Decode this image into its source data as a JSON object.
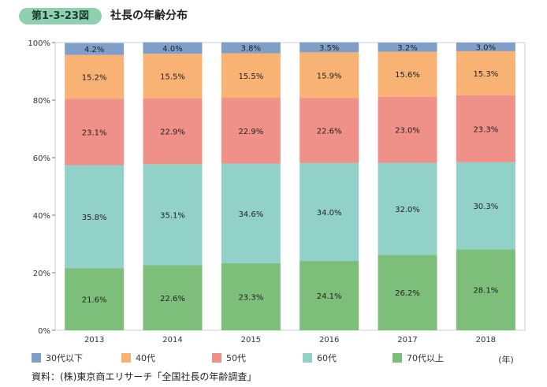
{
  "figure": {
    "label": "第1-3-23図",
    "title": "社長の年齢分布",
    "source": "資料：(株)東京商エリサーチ「全国社長の年齢調査」"
  },
  "chart_data": {
    "type": "bar",
    "stacked": true,
    "categories": [
      "2013",
      "2014",
      "2015",
      "2016",
      "2017",
      "2018"
    ],
    "x_unit": "(年)",
    "ylim": [
      0,
      100
    ],
    "y_ticks": [
      "0%",
      "20%",
      "40%",
      "60%",
      "80%",
      "100%"
    ],
    "legend_position": "bottom",
    "series": [
      {
        "name": "70代以上",
        "color": "#7dbe7a",
        "values": [
          21.6,
          22.6,
          23.3,
          24.1,
          26.2,
          28.1
        ],
        "labels": [
          "21.6%",
          "22.6%",
          "23.3%",
          "24.1%",
          "26.2%",
          "28.1%"
        ]
      },
      {
        "name": "60代",
        "color": "#92d1c8",
        "values": [
          35.8,
          35.1,
          34.6,
          34.0,
          32.0,
          30.3
        ],
        "labels": [
          "35.8%",
          "35.1%",
          "34.6%",
          "34.0%",
          "32.0%",
          "30.3%"
        ]
      },
      {
        "name": "50代",
        "color": "#ef9089",
        "values": [
          23.1,
          22.9,
          22.9,
          22.6,
          23.0,
          23.3
        ],
        "labels": [
          "23.1%",
          "22.9%",
          "22.9%",
          "22.6%",
          "23.0%",
          "23.3%"
        ]
      },
      {
        "name": "40代",
        "color": "#f8b274",
        "values": [
          15.2,
          15.5,
          15.5,
          15.9,
          15.6,
          15.3
        ],
        "labels": [
          "15.2%",
          "15.5%",
          "15.5%",
          "15.9%",
          "15.6%",
          "15.3%"
        ]
      },
      {
        "name": "30代以下",
        "color": "#7f9fc9",
        "values": [
          4.2,
          4.0,
          3.8,
          3.5,
          3.2,
          3.0
        ],
        "labels": [
          "4.2%",
          "4.0%",
          "3.8%",
          "3.5%",
          "3.2%",
          "3.0%"
        ]
      }
    ],
    "legend_order": [
      "30代以下",
      "40代",
      "50代",
      "60代",
      "70代以上"
    ]
  }
}
